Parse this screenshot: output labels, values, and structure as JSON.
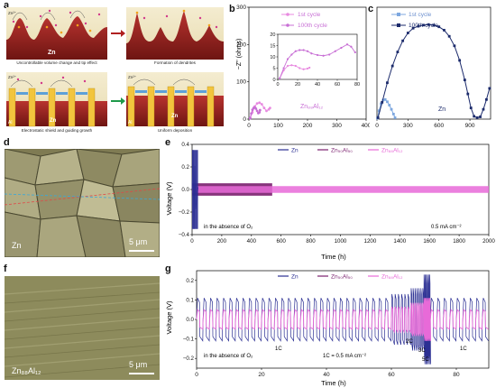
{
  "figure": {
    "panel_letters": {
      "a": "a",
      "b": "b",
      "c": "c",
      "d": "d",
      "e": "e",
      "f": "f",
      "g": "g"
    },
    "panel_a": {
      "captions": [
        "Uncontrollable volume change and tip effect",
        "Formation of dendrites",
        "Electrostatic shield and guiding growth",
        "Uniform deposition"
      ],
      "labels": {
        "zn_ion": "Zn²⁺",
        "zn": "Zn",
        "al": "Al"
      }
    },
    "panel_d": {
      "label": "Zn",
      "scale": "5 μm"
    },
    "panel_f": {
      "label": "Zn₈₈Al₁₂",
      "scale": "5 μm"
    },
    "colors": {
      "zn": "#2b2f93",
      "znal50": "#7a1f6e",
      "znal12": "#e86ad8",
      "zn_dark": "#1b2a6b",
      "zn_light": "#7da7df"
    }
  },
  "chart_data": [
    {
      "panel": "b",
      "type": "scatter",
      "ylabel": "−Z'' (ohms)",
      "xlim": [
        0,
        400
      ],
      "ylim": [
        0,
        300
      ],
      "xticks": [
        "0",
        "100",
        "200",
        "300",
        "400"
      ],
      "yticks": [
        "0",
        "100",
        "200",
        "300"
      ],
      "legend": [
        "1st cycle",
        "100th cycle"
      ],
      "annotation": "Zn₈₈Al₁₂",
      "series": [
        {
          "name": "1st cycle",
          "x": [
            5,
            12,
            20,
            28,
            36,
            44,
            52,
            60,
            68,
            72
          ],
          "y": [
            3,
            18,
            34,
            42,
            44,
            40,
            30,
            22,
            26,
            30
          ]
        },
        {
          "name": "100th cycle",
          "x": [
            4,
            8,
            12,
            16,
            20,
            24,
            28,
            32,
            36,
            38
          ],
          "y": [
            2,
            15,
            25,
            30,
            31,
            28,
            22,
            16,
            18,
            24
          ]
        }
      ],
      "inset": {
        "xlim": [
          0,
          80
        ],
        "ylim": [
          0,
          20
        ],
        "xticks": [
          "0",
          "20",
          "40",
          "60",
          "80"
        ],
        "yticks": [
          "0",
          "5",
          "10",
          "15",
          "20"
        ],
        "series": [
          {
            "name": "1st cycle",
            "x": [
              2,
              6,
              10,
              14,
              18,
              22,
              26,
              30,
              32
            ],
            "y": [
              0.5,
              4,
              6,
              6.3,
              6,
              5,
              4.5,
              4.8,
              5.2
            ]
          },
          {
            "name": "100th cycle",
            "x": [
              2,
              6,
              10,
              14,
              18,
              22,
              26,
              30,
              34,
              40,
              46,
              52,
              58,
              64,
              70,
              74,
              78
            ],
            "y": [
              0.5,
              5,
              9,
              11,
              12.5,
              13,
              13,
              12.5,
              11.5,
              10.8,
              10.5,
              11,
              12.5,
              14,
              15.5,
              14.5,
              12
            ]
          }
        ]
      }
    },
    {
      "panel": "c",
      "type": "scatter",
      "xlim": [
        0,
        1100
      ],
      "ylim": [
        0,
        400
      ],
      "xticks": [
        "0",
        "300",
        "600",
        "900"
      ],
      "legend": [
        "1st cycle",
        "100th cycle"
      ],
      "annotation": "Zn",
      "series": [
        {
          "name": "1st cycle",
          "x": [
            5,
            20,
            40,
            60,
            80,
            100,
            120,
            140,
            160,
            175
          ],
          "y": [
            3,
            30,
            55,
            68,
            70,
            62,
            50,
            35,
            18,
            5
          ]
        },
        {
          "name": "100th cycle",
          "x": [
            10,
            50,
            100,
            150,
            200,
            250,
            300,
            350,
            400,
            450,
            500,
            550,
            600,
            650,
            700,
            750,
            800,
            850,
            880,
            910,
            940,
            970,
            1000,
            1030,
            1060,
            1090
          ],
          "y": [
            5,
            60,
            130,
            190,
            240,
            280,
            308,
            325,
            332,
            336,
            338,
            336,
            330,
            318,
            296,
            262,
            210,
            140,
            90,
            40,
            10,
            5,
            8,
            35,
            70,
            110
          ]
        }
      ]
    },
    {
      "panel": "e",
      "type": "line",
      "xlabel": "Time (h)",
      "ylabel": "Voltage (V)",
      "xlim": [
        0,
        2000
      ],
      "ylim": [
        -0.4,
        0.4
      ],
      "xticks": [
        "0",
        "200",
        "400",
        "600",
        "800",
        "1000",
        "1200",
        "1400",
        "1600",
        "1800",
        "2000"
      ],
      "yticks": [
        "−0.4",
        "−0.2",
        "0.0",
        "0.2",
        "0.4"
      ],
      "legend": [
        "Zn",
        "Zn₅₀Al₅₀",
        "Zn₈₈Al₁₂"
      ],
      "annotations": [
        "in the absence of O₂",
        "0.5 mA cm⁻²"
      ],
      "series": [
        {
          "name": "Zn",
          "x_end": 40,
          "amplitude": 0.35
        },
        {
          "name": "Zn₅₀Al₅₀",
          "x_end": 540,
          "amplitude": 0.055
        },
        {
          "name": "Zn₈₈Al₁₂",
          "x_end": 2000,
          "amplitude": 0.03
        }
      ]
    },
    {
      "panel": "g",
      "type": "line",
      "xlabel": "Time (h)",
      "ylabel": "Voltage (V)",
      "xlim": [
        0,
        90
      ],
      "ylim": [
        -0.25,
        0.25
      ],
      "xticks": [
        "0",
        "20",
        "40",
        "60",
        "80"
      ],
      "yticks": [
        "−0.2",
        "−0.1",
        "0.0",
        "0.1",
        "0.2"
      ],
      "legend": [
        "Zn",
        "Zn₅₀Al₅₀",
        "Zn₈₈Al₁₂"
      ],
      "annotations": [
        "in the absence of O₂",
        "1C = 0.5 mA cm⁻²",
        "1C",
        "2C",
        "3C",
        "5C",
        "1C"
      ],
      "rate_segments": [
        {
          "label": "1C",
          "start": 0,
          "end": 60,
          "amp_zn": 0.11,
          "amp_12": 0.05
        },
        {
          "label": "2C",
          "start": 60,
          "end": 66,
          "amp_zn": 0.13,
          "amp_12": 0.065
        },
        {
          "label": "3C",
          "start": 66,
          "end": 70,
          "amp_zn": 0.16,
          "amp_12": 0.085
        },
        {
          "label": "5C",
          "start": 70,
          "end": 72,
          "amp_zn": 0.23,
          "amp_12": 0.11
        },
        {
          "label": "1C",
          "start": 72,
          "end": 90,
          "amp_zn": 0.11,
          "amp_12": 0.05
        }
      ]
    }
  ]
}
